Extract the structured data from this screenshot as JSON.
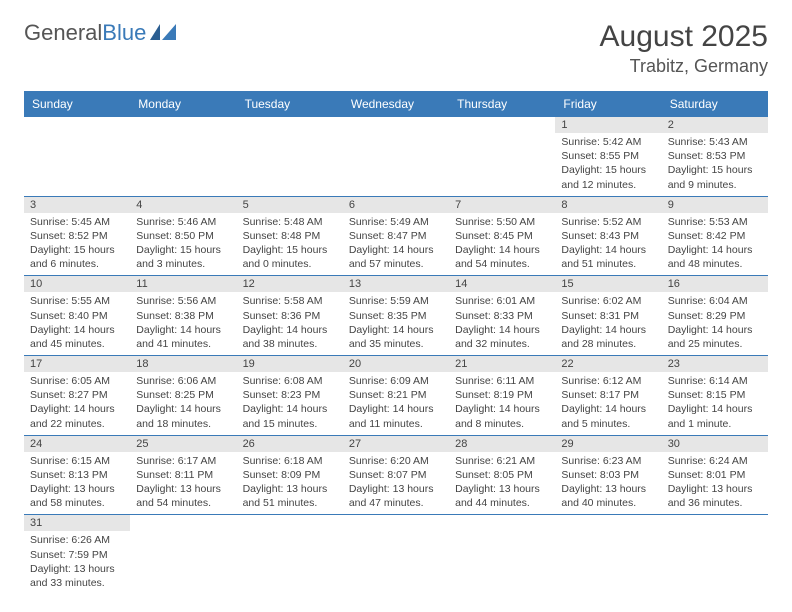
{
  "brand": {
    "part1": "General",
    "part2": "Blue"
  },
  "title": "August 2025",
  "location": "Trabitz, Germany",
  "colors": {
    "header_bg": "#3a7ab8",
    "header_text": "#ffffff",
    "daynum_bg": "#e6e6e6",
    "row_divider": "#3a7ab8",
    "text": "#444444",
    "background": "#ffffff"
  },
  "day_headers": [
    "Sunday",
    "Monday",
    "Tuesday",
    "Wednesday",
    "Thursday",
    "Friday",
    "Saturday"
  ],
  "weeks": [
    [
      {
        "n": "",
        "sr": "",
        "ss": "",
        "dl": ""
      },
      {
        "n": "",
        "sr": "",
        "ss": "",
        "dl": ""
      },
      {
        "n": "",
        "sr": "",
        "ss": "",
        "dl": ""
      },
      {
        "n": "",
        "sr": "",
        "ss": "",
        "dl": ""
      },
      {
        "n": "",
        "sr": "",
        "ss": "",
        "dl": ""
      },
      {
        "n": "1",
        "sr": "Sunrise: 5:42 AM",
        "ss": "Sunset: 8:55 PM",
        "dl": "Daylight: 15 hours and 12 minutes."
      },
      {
        "n": "2",
        "sr": "Sunrise: 5:43 AM",
        "ss": "Sunset: 8:53 PM",
        "dl": "Daylight: 15 hours and 9 minutes."
      }
    ],
    [
      {
        "n": "3",
        "sr": "Sunrise: 5:45 AM",
        "ss": "Sunset: 8:52 PM",
        "dl": "Daylight: 15 hours and 6 minutes."
      },
      {
        "n": "4",
        "sr": "Sunrise: 5:46 AM",
        "ss": "Sunset: 8:50 PM",
        "dl": "Daylight: 15 hours and 3 minutes."
      },
      {
        "n": "5",
        "sr": "Sunrise: 5:48 AM",
        "ss": "Sunset: 8:48 PM",
        "dl": "Daylight: 15 hours and 0 minutes."
      },
      {
        "n": "6",
        "sr": "Sunrise: 5:49 AM",
        "ss": "Sunset: 8:47 PM",
        "dl": "Daylight: 14 hours and 57 minutes."
      },
      {
        "n": "7",
        "sr": "Sunrise: 5:50 AM",
        "ss": "Sunset: 8:45 PM",
        "dl": "Daylight: 14 hours and 54 minutes."
      },
      {
        "n": "8",
        "sr": "Sunrise: 5:52 AM",
        "ss": "Sunset: 8:43 PM",
        "dl": "Daylight: 14 hours and 51 minutes."
      },
      {
        "n": "9",
        "sr": "Sunrise: 5:53 AM",
        "ss": "Sunset: 8:42 PM",
        "dl": "Daylight: 14 hours and 48 minutes."
      }
    ],
    [
      {
        "n": "10",
        "sr": "Sunrise: 5:55 AM",
        "ss": "Sunset: 8:40 PM",
        "dl": "Daylight: 14 hours and 45 minutes."
      },
      {
        "n": "11",
        "sr": "Sunrise: 5:56 AM",
        "ss": "Sunset: 8:38 PM",
        "dl": "Daylight: 14 hours and 41 minutes."
      },
      {
        "n": "12",
        "sr": "Sunrise: 5:58 AM",
        "ss": "Sunset: 8:36 PM",
        "dl": "Daylight: 14 hours and 38 minutes."
      },
      {
        "n": "13",
        "sr": "Sunrise: 5:59 AM",
        "ss": "Sunset: 8:35 PM",
        "dl": "Daylight: 14 hours and 35 minutes."
      },
      {
        "n": "14",
        "sr": "Sunrise: 6:01 AM",
        "ss": "Sunset: 8:33 PM",
        "dl": "Daylight: 14 hours and 32 minutes."
      },
      {
        "n": "15",
        "sr": "Sunrise: 6:02 AM",
        "ss": "Sunset: 8:31 PM",
        "dl": "Daylight: 14 hours and 28 minutes."
      },
      {
        "n": "16",
        "sr": "Sunrise: 6:04 AM",
        "ss": "Sunset: 8:29 PM",
        "dl": "Daylight: 14 hours and 25 minutes."
      }
    ],
    [
      {
        "n": "17",
        "sr": "Sunrise: 6:05 AM",
        "ss": "Sunset: 8:27 PM",
        "dl": "Daylight: 14 hours and 22 minutes."
      },
      {
        "n": "18",
        "sr": "Sunrise: 6:06 AM",
        "ss": "Sunset: 8:25 PM",
        "dl": "Daylight: 14 hours and 18 minutes."
      },
      {
        "n": "19",
        "sr": "Sunrise: 6:08 AM",
        "ss": "Sunset: 8:23 PM",
        "dl": "Daylight: 14 hours and 15 minutes."
      },
      {
        "n": "20",
        "sr": "Sunrise: 6:09 AM",
        "ss": "Sunset: 8:21 PM",
        "dl": "Daylight: 14 hours and 11 minutes."
      },
      {
        "n": "21",
        "sr": "Sunrise: 6:11 AM",
        "ss": "Sunset: 8:19 PM",
        "dl": "Daylight: 14 hours and 8 minutes."
      },
      {
        "n": "22",
        "sr": "Sunrise: 6:12 AM",
        "ss": "Sunset: 8:17 PM",
        "dl": "Daylight: 14 hours and 5 minutes."
      },
      {
        "n": "23",
        "sr": "Sunrise: 6:14 AM",
        "ss": "Sunset: 8:15 PM",
        "dl": "Daylight: 14 hours and 1 minute."
      }
    ],
    [
      {
        "n": "24",
        "sr": "Sunrise: 6:15 AM",
        "ss": "Sunset: 8:13 PM",
        "dl": "Daylight: 13 hours and 58 minutes."
      },
      {
        "n": "25",
        "sr": "Sunrise: 6:17 AM",
        "ss": "Sunset: 8:11 PM",
        "dl": "Daylight: 13 hours and 54 minutes."
      },
      {
        "n": "26",
        "sr": "Sunrise: 6:18 AM",
        "ss": "Sunset: 8:09 PM",
        "dl": "Daylight: 13 hours and 51 minutes."
      },
      {
        "n": "27",
        "sr": "Sunrise: 6:20 AM",
        "ss": "Sunset: 8:07 PM",
        "dl": "Daylight: 13 hours and 47 minutes."
      },
      {
        "n": "28",
        "sr": "Sunrise: 6:21 AM",
        "ss": "Sunset: 8:05 PM",
        "dl": "Daylight: 13 hours and 44 minutes."
      },
      {
        "n": "29",
        "sr": "Sunrise: 6:23 AM",
        "ss": "Sunset: 8:03 PM",
        "dl": "Daylight: 13 hours and 40 minutes."
      },
      {
        "n": "30",
        "sr": "Sunrise: 6:24 AM",
        "ss": "Sunset: 8:01 PM",
        "dl": "Daylight: 13 hours and 36 minutes."
      }
    ],
    [
      {
        "n": "31",
        "sr": "Sunrise: 6:26 AM",
        "ss": "Sunset: 7:59 PM",
        "dl": "Daylight: 13 hours and 33 minutes."
      },
      {
        "n": "",
        "sr": "",
        "ss": "",
        "dl": ""
      },
      {
        "n": "",
        "sr": "",
        "ss": "",
        "dl": ""
      },
      {
        "n": "",
        "sr": "",
        "ss": "",
        "dl": ""
      },
      {
        "n": "",
        "sr": "",
        "ss": "",
        "dl": ""
      },
      {
        "n": "",
        "sr": "",
        "ss": "",
        "dl": ""
      },
      {
        "n": "",
        "sr": "",
        "ss": "",
        "dl": ""
      }
    ]
  ]
}
